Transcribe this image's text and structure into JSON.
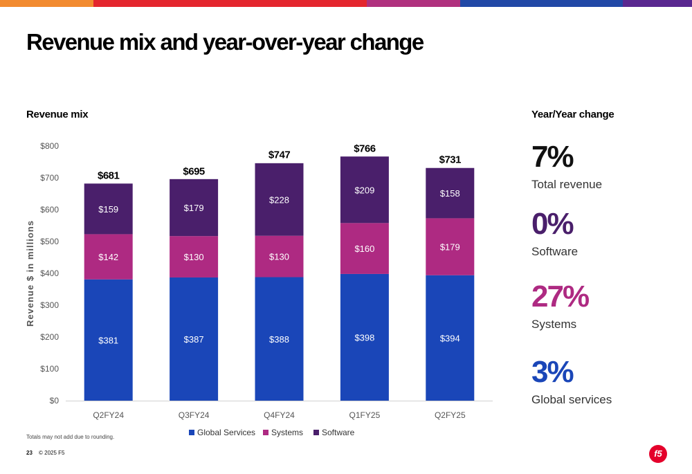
{
  "topbar_colors": [
    "#f28b30",
    "#e4262e",
    "#b0317e",
    "#2148a6",
    "#5a2890"
  ],
  "slide": {
    "title": "Revenue mix and year-over-year change",
    "left_heading": "Revenue mix",
    "right_heading": "Year/Year change",
    "footnote": "Totals may not add due to rounding.",
    "page_number": "23",
    "copyright": "© 2025 F5",
    "logo_text": "f5"
  },
  "chart_data": {
    "type": "bar",
    "stacked": true,
    "ylabel": "Revenue $ in millions",
    "ylim": [
      0,
      800
    ],
    "ytick_labels": [
      "$0",
      "$100",
      "$200",
      "$300",
      "$400",
      "$500",
      "$600",
      "$700",
      "$800"
    ],
    "categories": [
      "Q2FY24",
      "Q3FY24",
      "Q4FY24",
      "Q1FY25",
      "Q2FY25"
    ],
    "series": [
      {
        "name": "Global Services",
        "color": "#1a46b8",
        "values": [
          381,
          387,
          388,
          398,
          394
        ],
        "labels": [
          "$381",
          "$387",
          "$388",
          "$398",
          "$394"
        ]
      },
      {
        "name": "Systems",
        "color": "#ae2a82",
        "values": [
          142,
          130,
          130,
          160,
          179
        ],
        "labels": [
          "$142",
          "$130",
          "$130",
          "$160",
          "$179"
        ]
      },
      {
        "name": "Software",
        "color": "#4a1f6b",
        "values": [
          159,
          179,
          228,
          209,
          158
        ],
        "labels": [
          "$159",
          "$179",
          "$228",
          "$209",
          "$158"
        ]
      }
    ],
    "totals": [
      681,
      695,
      747,
      766,
      731
    ],
    "total_labels": [
      "$681",
      "$695",
      "$747",
      "$766",
      "$731"
    ],
    "grid": false,
    "legend_position": "bottom"
  },
  "yoy": [
    {
      "pct": "7%",
      "label": "Total revenue",
      "color": "#111111"
    },
    {
      "pct": "0%",
      "label": "Software",
      "color": "#4a1f6b"
    },
    {
      "pct": "27%",
      "label": "Systems",
      "color": "#ae2a82"
    },
    {
      "pct": "3%",
      "label": "Global services",
      "color": "#1a46b8"
    }
  ]
}
